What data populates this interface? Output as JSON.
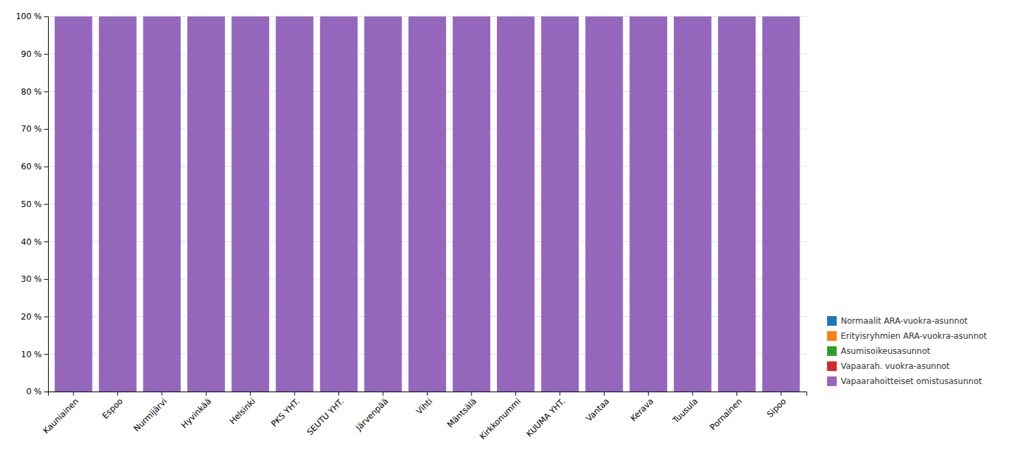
{
  "chart_data": {
    "type": "bar",
    "stacked": true,
    "categories": [
      "Kauniainen",
      "Espoo",
      "Nurmijärvi",
      "Hyvinkää",
      "Helsinki",
      "PKS YHT.",
      "SEUTU YHT.",
      "Järvenpää",
      "Vihti",
      "Mäntsälä",
      "Kirkkonummi",
      "KUUMA YHT.",
      "Vantaa",
      "Kerava",
      "Tuusula",
      "Pornainen",
      "Sipoo"
    ],
    "series": [
      {
        "name": "Normaalit ARA-vuokra-asunnot",
        "values": [
          0,
          0,
          0,
          0,
          0,
          0,
          0,
          0,
          0,
          0,
          0,
          0,
          0,
          0,
          0,
          0,
          0
        ]
      },
      {
        "name": "Erityisryhmien ARA-vuokra-asunnot",
        "values": [
          0,
          0,
          0,
          0,
          0,
          0,
          0,
          0,
          0,
          0,
          0,
          0,
          0,
          0,
          0,
          0,
          0
        ]
      },
      {
        "name": "Asumisoikeusasunnot",
        "values": [
          0,
          0,
          0,
          0,
          0,
          0,
          0,
          0,
          0,
          0,
          0,
          0,
          0,
          0,
          0,
          0,
          0
        ]
      },
      {
        "name": "Vapaarah. vuokra-asunnot",
        "values": [
          0,
          0,
          0,
          0,
          0,
          0,
          0,
          0,
          0,
          0,
          0,
          0,
          0,
          0,
          0,
          0,
          0
        ]
      },
      {
        "name": "Vapaarahoitteiset omistusasunnot",
        "values": [
          100,
          100,
          100,
          100,
          100,
          100,
          100,
          100,
          100,
          100,
          100,
          100,
          100,
          100,
          100,
          100,
          100
        ]
      }
    ],
    "ylim": [
      0,
      100
    ],
    "yticks": [
      {
        "value": 0,
        "label": "0 %"
      },
      {
        "value": 10,
        "label": "10 %"
      },
      {
        "value": 20,
        "label": "20 %"
      },
      {
        "value": 30,
        "label": "30 %"
      },
      {
        "value": 40,
        "label": "40 %"
      },
      {
        "value": 50,
        "label": "50 %"
      },
      {
        "value": 60,
        "label": "60 %"
      },
      {
        "value": 70,
        "label": "70 %"
      },
      {
        "value": 80,
        "label": "80 %"
      },
      {
        "value": 90,
        "label": "90 %"
      },
      {
        "value": 100,
        "label": "100 %"
      }
    ],
    "grid": true,
    "legend": "bottom-right"
  }
}
